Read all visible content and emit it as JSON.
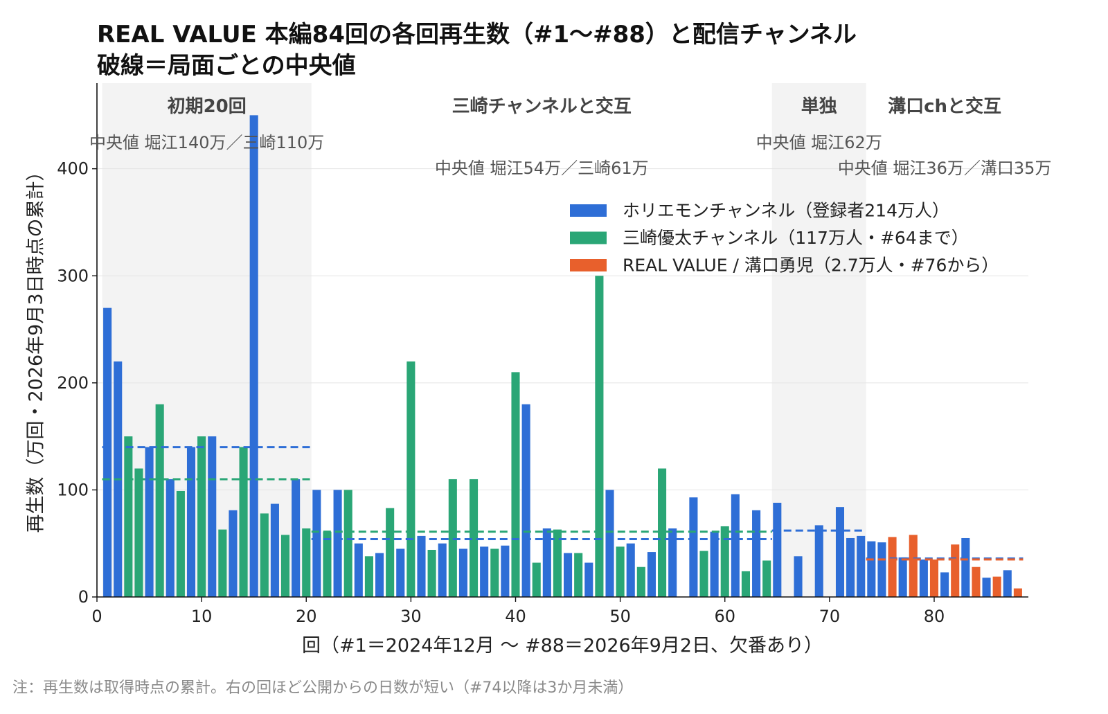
{
  "chart_data": {
    "type": "bar",
    "title": "REAL VALUE 本編84回の各回再生数（#1〜#88）と配信チャンネル",
    "subtitle": "破線＝局面ごとの中央値",
    "xlabel": "回（#1＝2024年12月 〜 #88＝2026年9月2日、欠番あり）",
    "ylabel": "再生数（万回・2026年9月3日時点の累計）",
    "footnote": "注：再生数は取得時点の累計。右の回ほど公開からの日数が短い（#74以降は3か月未満）",
    "xlim": [
      0,
      89
    ],
    "ylim": [
      0,
      480
    ],
    "x_ticks": [
      0,
      10,
      20,
      30,
      40,
      50,
      60,
      70,
      80
    ],
    "y_ticks": [
      0,
      100,
      200,
      300,
      400
    ],
    "grid": "horizontal",
    "legend_position": "upper right",
    "shade_color": "#f3f3f3",
    "series": [
      {
        "name": "ホリエモンチャンネル（登録者214万人）",
        "color": "#2e6ed6",
        "x": [
          1,
          2,
          5,
          7,
          9,
          11,
          13,
          15,
          17,
          19,
          21,
          23,
          25,
          27,
          29,
          31,
          33,
          35,
          37,
          39,
          41,
          43,
          45,
          47,
          49,
          51,
          53,
          55,
          57,
          59,
          61,
          63,
          65,
          67,
          69,
          71,
          72,
          73,
          74,
          75,
          77,
          79,
          81,
          83,
          85,
          87
        ],
        "values": [
          270,
          220,
          140,
          110,
          140,
          150,
          81,
          450,
          87,
          110,
          100,
          100,
          50,
          41,
          45,
          57,
          50,
          45,
          47,
          48,
          180,
          64,
          41,
          32,
          100,
          50,
          42,
          64,
          93,
          61,
          96,
          81,
          88,
          38,
          67,
          84,
          55,
          57,
          52,
          51,
          37,
          35,
          23,
          55,
          18,
          25
        ]
      },
      {
        "name": "三崎優太チャンネル（117万人・#64まで）",
        "color": "#2aa676",
        "x": [
          3,
          4,
          6,
          8,
          10,
          12,
          14,
          16,
          18,
          20,
          22,
          24,
          26,
          28,
          30,
          32,
          34,
          36,
          38,
          40,
          42,
          44,
          46,
          48,
          50,
          52,
          54,
          58,
          60,
          62,
          64
        ],
        "values": [
          150,
          120,
          180,
          99,
          150,
          63,
          140,
          78,
          58,
          64,
          61,
          100,
          38,
          83,
          220,
          44,
          110,
          110,
          45,
          210,
          32,
          63,
          41,
          300,
          47,
          28,
          120,
          43,
          66,
          24,
          34
        ]
      },
      {
        "name": "REAL VALUE / 溝口勇児（2.7万人・#76から）",
        "color": "#e8602c",
        "x": [
          76,
          78,
          80,
          82,
          84,
          86,
          88
        ],
        "values": [
          56,
          58,
          35,
          49,
          28,
          19,
          8
        ]
      }
    ],
    "phases": [
      {
        "label": "初期20回",
        "from": 1,
        "to": 20,
        "shaded": true,
        "median_label": "中央値 堀江140万／三崎110万",
        "medians": [
          {
            "series": 0,
            "value": 140
          },
          {
            "series": 1,
            "value": 110
          }
        ]
      },
      {
        "label": "三崎チャンネルと交互",
        "from": 21,
        "to": 64,
        "shaded": false,
        "median_label": "中央値 堀江54万／三崎61万",
        "medians": [
          {
            "series": 0,
            "value": 54
          },
          {
            "series": 1,
            "value": 61
          }
        ]
      },
      {
        "label": "単独",
        "from": 65,
        "to": 73,
        "shaded": true,
        "median_label": "中央値 堀江62万",
        "medians": [
          {
            "series": 0,
            "value": 62
          }
        ]
      },
      {
        "label": "溝口chと交互",
        "from": 74,
        "to": 88,
        "shaded": false,
        "median_label": "中央値 堀江36万／溝口35万",
        "medians": [
          {
            "series": 0,
            "value": 36
          },
          {
            "series": 2,
            "value": 35
          }
        ]
      }
    ]
  }
}
